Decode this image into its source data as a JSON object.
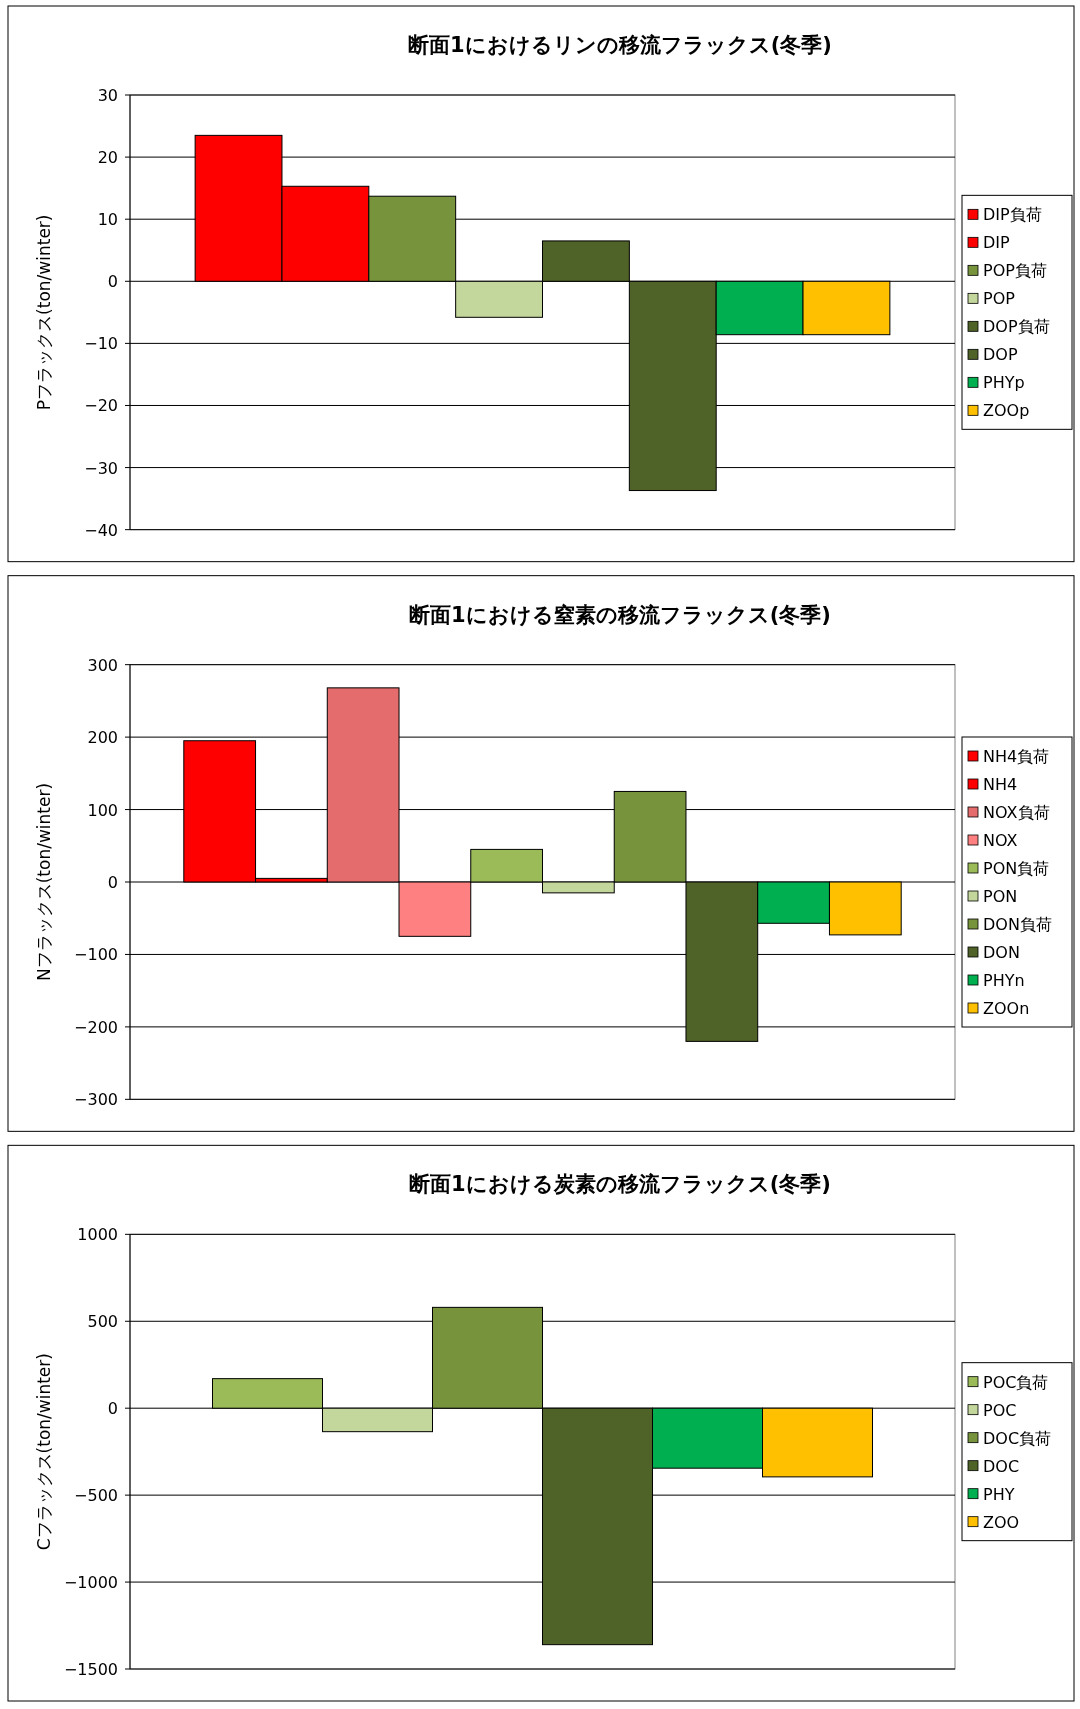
{
  "chart_data": [
    {
      "type": "bar",
      "title": "断面1におけるリンの移流フラックス(冬季)",
      "ylabel": "Pフラックス(ton/winter)",
      "categories": [
        null
      ],
      "ylim": [
        -40,
        30
      ],
      "yticks": [
        -40,
        -30,
        -20,
        -10,
        0,
        10,
        20,
        30
      ],
      "grid": "y",
      "legend": "right",
      "series": [
        {
          "name": "DIP負荷",
          "color": "#ff0000",
          "values": [
            23.5
          ]
        },
        {
          "name": "DIP",
          "color": "#ff0000",
          "values": [
            15.3
          ]
        },
        {
          "name": "POP負荷",
          "color": "#77933c",
          "values": [
            13.7
          ]
        },
        {
          "name": "POP",
          "color": "#c3d69b",
          "values": [
            -5.8
          ]
        },
        {
          "name": "DOP負荷",
          "color": "#4f6228",
          "values": [
            6.5
          ]
        },
        {
          "name": "DOP",
          "color": "#4f6228",
          "values": [
            -33.7
          ]
        },
        {
          "name": "PHYp",
          "color": "#00b050",
          "values": [
            -8.6
          ]
        },
        {
          "name": "ZOOp",
          "color": "#ffc000",
          "values": [
            -8.6
          ]
        }
      ]
    },
    {
      "type": "bar",
      "title": "断面1における窒素の移流フラックス(冬季)",
      "ylabel": "Nフラックス(ton/winter)",
      "categories": [
        null
      ],
      "ylim": [
        -300,
        300
      ],
      "yticks": [
        -300,
        -200,
        -100,
        0,
        100,
        200,
        300
      ],
      "grid": "y",
      "legend": "right",
      "series": [
        {
          "name": "NH4負荷",
          "color": "#ff0000",
          "values": [
            195
          ]
        },
        {
          "name": "NH4",
          "color": "#ff0000",
          "values": [
            5
          ]
        },
        {
          "name": "NOX負荷",
          "color": "#e46c6c",
          "values": [
            268
          ]
        },
        {
          "name": "NOX",
          "color": "#ff8080",
          "values": [
            -75
          ]
        },
        {
          "name": "PON負荷",
          "color": "#9bbb59",
          "values": [
            45
          ]
        },
        {
          "name": "PON",
          "color": "#c3d69b",
          "values": [
            -15
          ]
        },
        {
          "name": "DON負荷",
          "color": "#77933c",
          "values": [
            125
          ]
        },
        {
          "name": "DON",
          "color": "#4f6228",
          "values": [
            -220
          ]
        },
        {
          "name": "PHYn",
          "color": "#00b050",
          "values": [
            -57
          ]
        },
        {
          "name": "ZOOn",
          "color": "#ffc000",
          "values": [
            -73
          ]
        }
      ]
    },
    {
      "type": "bar",
      "title": "断面1における炭素の移流フラックス(冬季)",
      "ylabel": "Cフラックス(ton/winter)",
      "categories": [
        null
      ],
      "ylim": [
        -1500,
        1000
      ],
      "yticks": [
        -1500,
        -1000,
        -500,
        0,
        500,
        1000
      ],
      "grid": "y",
      "legend": "right",
      "series": [
        {
          "name": "POC負荷",
          "color": "#9bbb59",
          "values": [
            170
          ]
        },
        {
          "name": "POC",
          "color": "#c3d69b",
          "values": [
            -135
          ]
        },
        {
          "name": "DOC負荷",
          "color": "#77933c",
          "values": [
            580
          ]
        },
        {
          "name": "DOC",
          "color": "#4f6228",
          "values": [
            -1360
          ]
        },
        {
          "name": "PHY",
          "color": "#00b050",
          "values": [
            -345
          ]
        },
        {
          "name": "ZOO",
          "color": "#ffc000",
          "values": [
            -395
          ]
        }
      ]
    }
  ]
}
